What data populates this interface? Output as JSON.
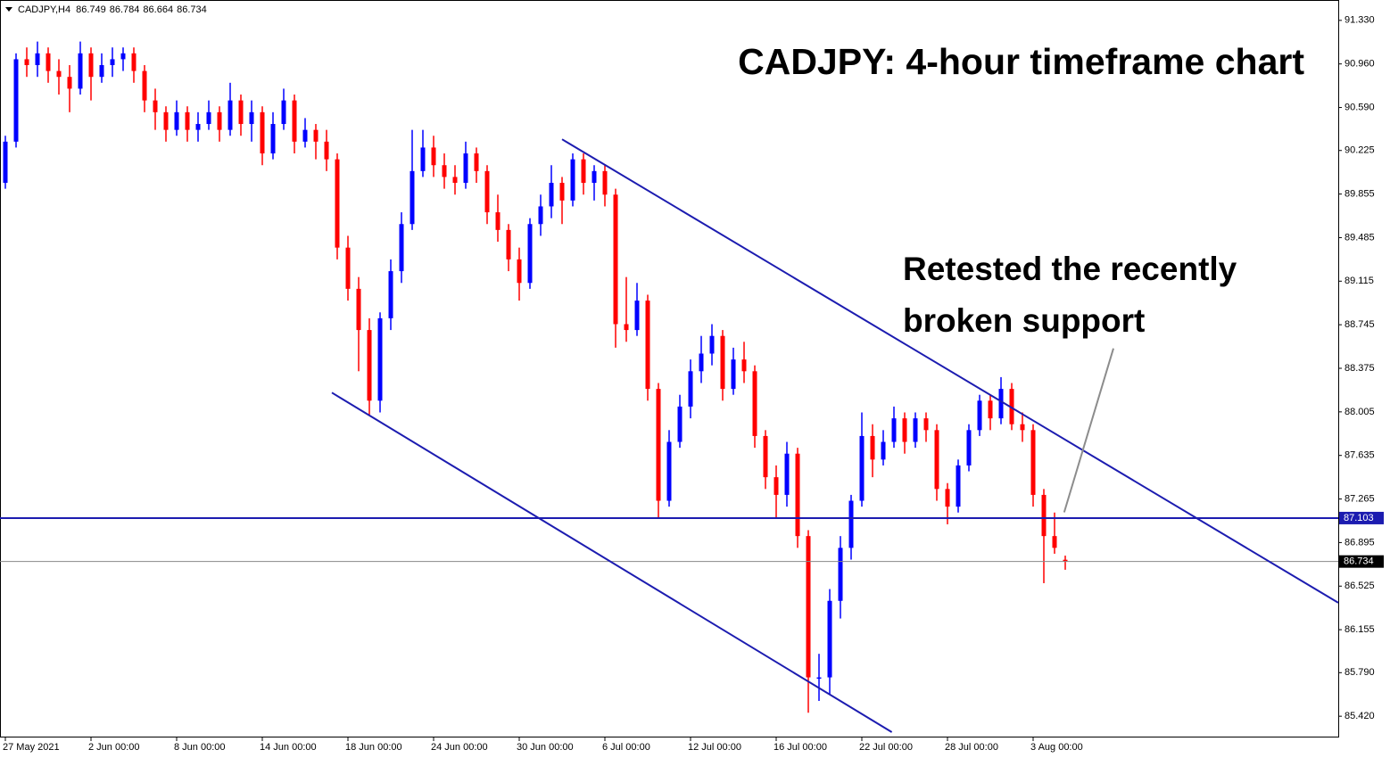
{
  "chart_data": {
    "type": "candlestick",
    "symbol": "CADJPY,H4",
    "title": "CADJPY: 4-hour timeframe chart",
    "annotation": [
      "Retested the recently",
      "broken support"
    ],
    "up_color": "#0000ff",
    "down_color": "#ff0000",
    "line_color": "#1c1cb0",
    "candles": [
      [
        89.95,
        90.35,
        89.9,
        90.3
      ],
      [
        90.3,
        91.05,
        90.25,
        91.0
      ],
      [
        91.0,
        91.1,
        90.85,
        90.95
      ],
      [
        90.95,
        91.15,
        90.85,
        91.05
      ],
      [
        91.05,
        91.1,
        90.8,
        90.9
      ],
      [
        90.9,
        91.0,
        90.7,
        90.85
      ],
      [
        90.85,
        90.95,
        90.55,
        90.75
      ],
      [
        90.75,
        91.15,
        90.7,
        91.05
      ],
      [
        91.05,
        91.1,
        90.65,
        90.85
      ],
      [
        90.85,
        91.05,
        90.8,
        90.95
      ],
      [
        90.95,
        91.1,
        90.85,
        91.0
      ],
      [
        91.0,
        91.1,
        90.9,
        91.05
      ],
      [
        91.05,
        91.1,
        90.8,
        90.9
      ],
      [
        90.9,
        90.95,
        90.55,
        90.65
      ],
      [
        90.65,
        90.75,
        90.4,
        90.55
      ],
      [
        90.55,
        90.6,
        90.3,
        90.4
      ],
      [
        90.4,
        90.65,
        90.35,
        90.55
      ],
      [
        90.55,
        90.6,
        90.3,
        90.4
      ],
      [
        90.4,
        90.55,
        90.3,
        90.45
      ],
      [
        90.45,
        90.65,
        90.4,
        90.55
      ],
      [
        90.55,
        90.6,
        90.3,
        90.4
      ],
      [
        90.4,
        90.8,
        90.35,
        90.65
      ],
      [
        90.65,
        90.7,
        90.35,
        90.45
      ],
      [
        90.45,
        90.65,
        90.3,
        90.55
      ],
      [
        90.55,
        90.6,
        90.1,
        90.2
      ],
      [
        90.2,
        90.55,
        90.15,
        90.45
      ],
      [
        90.45,
        90.75,
        90.4,
        90.65
      ],
      [
        90.65,
        90.7,
        90.2,
        90.3
      ],
      [
        90.3,
        90.5,
        90.25,
        90.4
      ],
      [
        90.4,
        90.45,
        90.15,
        90.3
      ],
      [
        90.3,
        90.4,
        90.05,
        90.15
      ],
      [
        90.15,
        90.2,
        89.3,
        89.4
      ],
      [
        89.4,
        89.5,
        88.95,
        89.05
      ],
      [
        89.05,
        89.15,
        88.35,
        88.7
      ],
      [
        88.7,
        88.8,
        87.98,
        88.1
      ],
      [
        88.1,
        88.85,
        88.0,
        88.8
      ],
      [
        88.8,
        89.3,
        88.7,
        89.2
      ],
      [
        89.2,
        89.7,
        89.1,
        89.6
      ],
      [
        89.6,
        90.4,
        89.55,
        90.05
      ],
      [
        90.05,
        90.4,
        90.0,
        90.25
      ],
      [
        90.25,
        90.35,
        90.0,
        90.1
      ],
      [
        90.1,
        90.2,
        89.9,
        90.0
      ],
      [
        90.0,
        90.1,
        89.85,
        89.95
      ],
      [
        89.95,
        90.3,
        89.9,
        90.2
      ],
      [
        90.2,
        90.25,
        89.95,
        90.05
      ],
      [
        90.05,
        90.1,
        89.6,
        89.7
      ],
      [
        89.7,
        89.85,
        89.45,
        89.55
      ],
      [
        89.55,
        89.6,
        89.2,
        89.3
      ],
      [
        89.3,
        89.4,
        88.95,
        89.1
      ],
      [
        89.1,
        89.65,
        89.05,
        89.6
      ],
      [
        89.6,
        89.85,
        89.5,
        89.75
      ],
      [
        89.75,
        90.1,
        89.65,
        89.95
      ],
      [
        89.95,
        90.0,
        89.6,
        89.8
      ],
      [
        89.8,
        90.2,
        89.75,
        90.15
      ],
      [
        90.15,
        90.2,
        89.85,
        89.95
      ],
      [
        89.95,
        90.1,
        89.8,
        90.05
      ],
      [
        90.05,
        90.1,
        89.75,
        89.85
      ],
      [
        89.85,
        89.9,
        88.55,
        88.75
      ],
      [
        88.75,
        89.15,
        88.6,
        88.7
      ],
      [
        88.7,
        89.1,
        88.65,
        88.95
      ],
      [
        88.95,
        89.0,
        88.1,
        88.2
      ],
      [
        88.2,
        88.25,
        87.1,
        87.25
      ],
      [
        87.25,
        87.85,
        87.2,
        87.75
      ],
      [
        87.75,
        88.15,
        87.7,
        88.05
      ],
      [
        88.05,
        88.45,
        87.95,
        88.35
      ],
      [
        88.35,
        88.65,
        88.25,
        88.5
      ],
      [
        88.5,
        88.75,
        88.4,
        88.65
      ],
      [
        88.65,
        88.7,
        88.1,
        88.2
      ],
      [
        88.2,
        88.55,
        88.15,
        88.45
      ],
      [
        88.45,
        88.6,
        88.25,
        88.35
      ],
      [
        88.35,
        88.4,
        87.7,
        87.8
      ],
      [
        87.8,
        87.85,
        87.35,
        87.45
      ],
      [
        87.45,
        87.55,
        87.1,
        87.3
      ],
      [
        87.3,
        87.75,
        87.2,
        87.65
      ],
      [
        87.65,
        87.7,
        86.85,
        86.95
      ],
      [
        86.95,
        87.0,
        85.45,
        85.75
      ],
      [
        85.75,
        85.95,
        85.55,
        85.75
      ],
      [
        85.75,
        86.5,
        85.6,
        86.4
      ],
      [
        86.4,
        86.95,
        86.25,
        86.85
      ],
      [
        86.85,
        87.3,
        86.75,
        87.25
      ],
      [
        87.25,
        88.0,
        87.2,
        87.8
      ],
      [
        87.8,
        87.9,
        87.45,
        87.6
      ],
      [
        87.6,
        87.85,
        87.55,
        87.75
      ],
      [
        87.75,
        88.05,
        87.7,
        87.95
      ],
      [
        87.95,
        88.0,
        87.65,
        87.75
      ],
      [
        87.75,
        88.0,
        87.7,
        87.95
      ],
      [
        87.95,
        88.0,
        87.75,
        87.85
      ],
      [
        87.85,
        87.9,
        87.25,
        87.35
      ],
      [
        87.35,
        87.4,
        87.05,
        87.2
      ],
      [
        87.2,
        87.6,
        87.15,
        87.55
      ],
      [
        87.55,
        87.9,
        87.5,
        87.85
      ],
      [
        87.85,
        88.15,
        87.8,
        88.1
      ],
      [
        88.1,
        88.15,
        87.85,
        87.95
      ],
      [
        87.95,
        88.3,
        87.9,
        88.2
      ],
      [
        88.2,
        88.25,
        87.85,
        87.9
      ],
      [
        87.9,
        88.0,
        87.75,
        87.85
      ],
      [
        87.85,
        87.9,
        87.2,
        87.3
      ],
      [
        87.3,
        87.35,
        86.55,
        86.95
      ],
      [
        86.95,
        87.15,
        86.8,
        86.85
      ],
      [
        86.749,
        86.784,
        86.664,
        86.734
      ]
    ],
    "xlim": [
      -0.5,
      124.5
    ],
    "xticks": [
      {
        "value": 0,
        "label": "27 May 2021"
      },
      {
        "value": 8,
        "label": "2 Jun 00:00"
      },
      {
        "value": 16,
        "label": "8 Jun 00:00"
      },
      {
        "value": 24,
        "label": "14 Jun 00:00"
      },
      {
        "value": 32,
        "label": "18 Jun 00:00"
      },
      {
        "value": 40,
        "label": "24 Jun 00:00"
      },
      {
        "value": 48,
        "label": "30 Jun 00:00"
      },
      {
        "value": 56,
        "label": "6 Jul 00:00"
      },
      {
        "value": 64,
        "label": "12 Jul 00:00"
      },
      {
        "value": 72,
        "label": "16 Jul 00:00"
      },
      {
        "value": 80,
        "label": "22 Jul 00:00"
      },
      {
        "value": 88,
        "label": "28 Jul 00:00"
      },
      {
        "value": 96,
        "label": "3 Aug 00:00"
      }
    ],
    "ylim": [
      85.247,
      91.503
    ],
    "yticks": [
      {
        "value": 91.33,
        "label": "91.330"
      },
      {
        "value": 90.96,
        "label": "90.960"
      },
      {
        "value": 90.59,
        "label": "90.590"
      },
      90.225,
      89.855,
      89.485,
      89.115,
      88.745,
      88.375,
      88.005,
      87.635,
      87.265,
      86.895,
      86.525,
      86.155,
      {
        "value": 85.79,
        "label": "85.790"
      },
      {
        "value": 85.42,
        "label": "85.420"
      }
    ],
    "level": 87.103,
    "last_price": 86.734,
    "trendlines": [
      {
        "x": [
          52.0,
          124.5
        ],
        "y": [
          90.32,
          86.384
        ]
      },
      {
        "x": [
          30.5,
          82.8
        ],
        "y": [
          88.168,
          85.285
        ]
      }
    ],
    "pointer": {
      "x": [
        98.9,
        103.5
      ],
      "y": [
        87.152,
        88.544
      ]
    }
  }
}
